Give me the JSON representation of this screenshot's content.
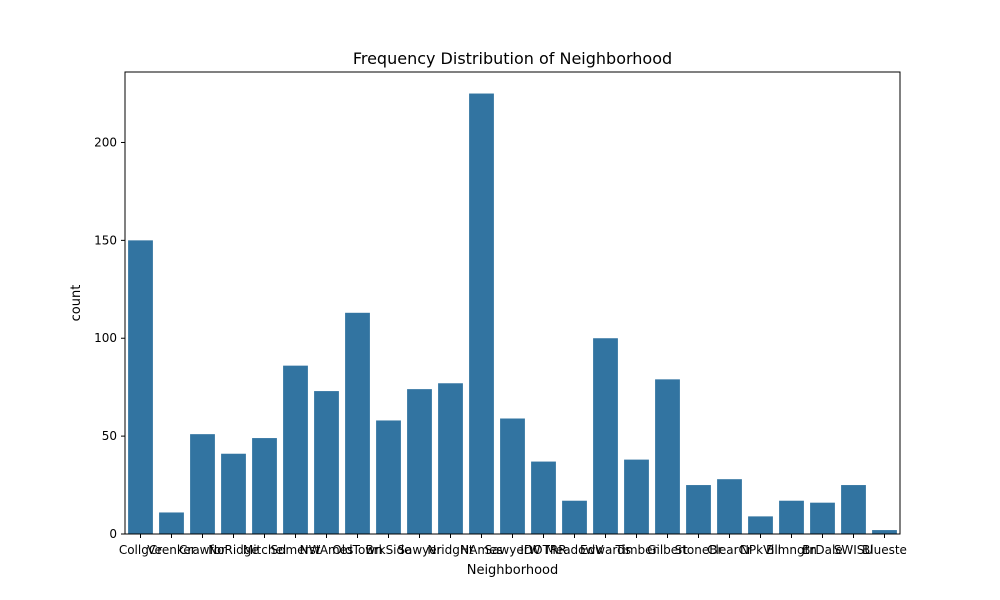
{
  "chart_data": {
    "type": "bar",
    "title": "Frequency Distribution of Neighborhood",
    "xlabel": "Neighborhood",
    "ylabel": "count",
    "categories": [
      "CollgCr",
      "Veenker",
      "Crawfor",
      "NoRidge",
      "Mitchel",
      "Somerst",
      "NWAmes",
      "OldTown",
      "BrkSide",
      "Sawyer",
      "NridgHt",
      "NAmes",
      "SawyerW",
      "IDOTRR",
      "MeadowV",
      "Edwards",
      "Timber",
      "Gilbert",
      "StoneBr",
      "ClearCr",
      "NPkVill",
      "Blmngtn",
      "BrDale",
      "SWISU",
      "Blueste"
    ],
    "values": [
      150,
      11,
      51,
      41,
      49,
      86,
      73,
      113,
      58,
      74,
      77,
      225,
      59,
      37,
      17,
      100,
      38,
      79,
      25,
      28,
      9,
      17,
      16,
      25,
      2
    ],
    "ylim": [
      0,
      236
    ],
    "yticks": [
      0,
      50,
      100,
      150,
      200
    ],
    "bar_color": "#3274a1",
    "grid": false,
    "legend": "none"
  }
}
